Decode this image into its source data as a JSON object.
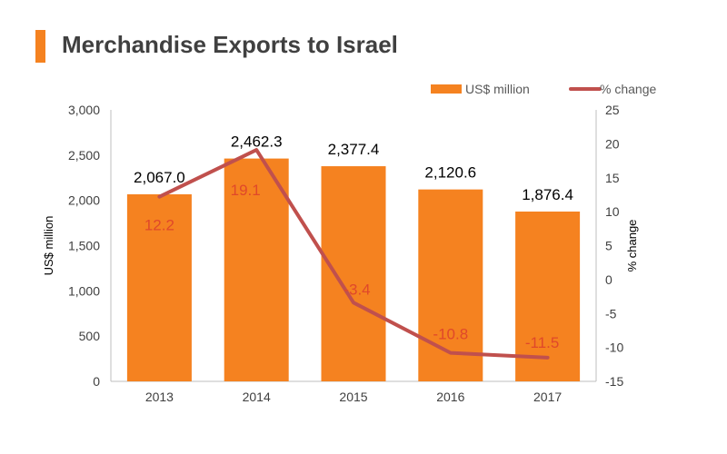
{
  "title": "Merchandise Exports to Israel",
  "colors": {
    "bar": "#f58220",
    "line": "#c0504d",
    "line_label": "#e0482a",
    "accent": "#f58220"
  },
  "chart_data": {
    "type": "bar",
    "categories": [
      "2013",
      "2014",
      "2015",
      "2016",
      "2017"
    ],
    "series": [
      {
        "name": "US$ million",
        "type": "bar",
        "axis": "left",
        "values": [
          2067.0,
          2462.3,
          2377.4,
          2120.6,
          1876.4
        ],
        "labels": [
          "2,067.0",
          "2,462.3",
          "2,377.4",
          "2,120.6",
          "1,876.4"
        ]
      },
      {
        "name": "% change",
        "type": "line",
        "axis": "right",
        "values": [
          12.2,
          19.1,
          -3.4,
          -10.8,
          -11.5
        ],
        "labels": [
          "12.2",
          "19.1",
          "-3.4",
          "-10.8",
          "-11.5"
        ]
      }
    ],
    "ylabel": "US$ million",
    "y2label": "% change",
    "ylim": [
      0,
      3000
    ],
    "y2lim": [
      -15,
      25
    ],
    "yticks": [
      "0",
      "500",
      "1,000",
      "1,500",
      "2,000",
      "2,500",
      "3,000"
    ],
    "y2ticks": [
      "-15",
      "-10",
      "-5",
      "0",
      "5",
      "10",
      "15",
      "20",
      "25"
    ],
    "grid": false,
    "legend": "top-right"
  }
}
